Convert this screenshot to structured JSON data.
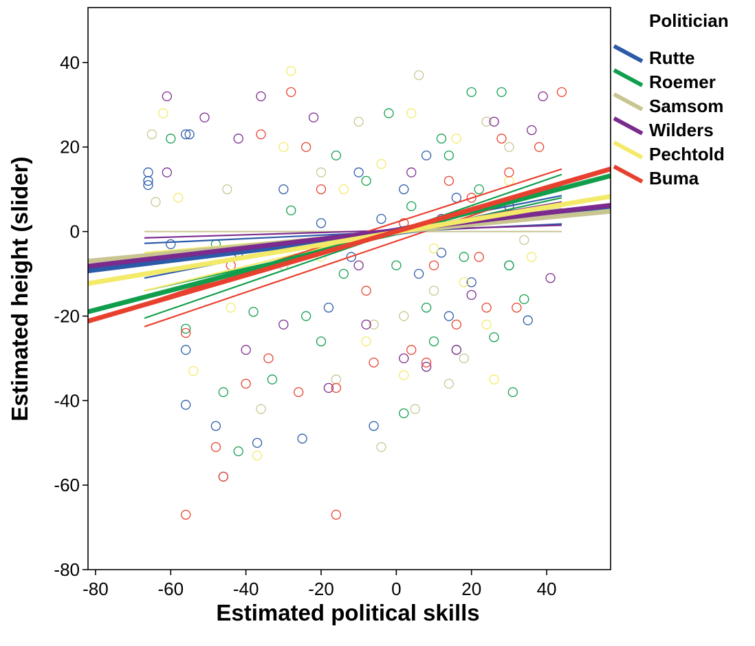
{
  "chart_data": {
    "type": "scatter",
    "title": "",
    "xlabel": "Estimated political skills",
    "ylabel": "Estimated height (slider)",
    "xlim": [
      -82,
      57
    ],
    "ylim": [
      -80,
      53
    ],
    "xticks": [
      -80,
      -60,
      -40,
      -20,
      0,
      20,
      40
    ],
    "yticks": [
      -80,
      -60,
      -40,
      -20,
      0,
      20,
      40
    ],
    "xtick_labels": [
      "-80",
      "-60",
      "-40",
      "-20",
      "0",
      "20",
      "40"
    ],
    "ytick_labels": [
      "-80",
      "-60",
      "-40",
      "-20",
      "0",
      "20",
      "40"
    ],
    "grid": false,
    "legend": {
      "title": "Politician",
      "placement": "outside-right",
      "items": [
        "Rutte",
        "Roemer",
        "Samsom",
        "Wilders",
        "Pechtold",
        "Buma"
      ]
    },
    "series": [
      {
        "name": "Rutte",
        "color": "#2a5aa8",
        "fit": {
          "x": [
            -82,
            57
          ],
          "y": [
            -9.3,
            6.0
          ]
        },
        "ci_upper": {
          "x": [
            -67,
            44
          ],
          "y": [
            -2.8,
            1.8
          ]
        },
        "ci_lower": {
          "x": [
            -67,
            44
          ],
          "y": [
            -11.0,
            8.5
          ]
        },
        "points": [
          [
            -66,
            14
          ],
          [
            -66,
            12
          ],
          [
            -66,
            11
          ],
          [
            -56,
            23
          ],
          [
            -55,
            23
          ],
          [
            -56,
            -28
          ],
          [
            -56,
            -41
          ],
          [
            -48,
            -46
          ],
          [
            -46,
            -58
          ],
          [
            -37,
            -50
          ],
          [
            -25,
            -49
          ],
          [
            -6,
            -46
          ],
          [
            -30,
            10
          ],
          [
            -20,
            2
          ],
          [
            -12,
            -6
          ],
          [
            -4,
            3
          ],
          [
            2,
            10
          ],
          [
            6,
            -10
          ],
          [
            12,
            -5
          ],
          [
            16,
            8
          ],
          [
            20,
            -12
          ],
          [
            24,
            3
          ],
          [
            30,
            -8
          ],
          [
            35,
            -21
          ],
          [
            8,
            18
          ],
          [
            14,
            -20
          ],
          [
            -10,
            14
          ],
          [
            -18,
            -18
          ],
          [
            -42,
            -5
          ],
          [
            -60,
            -3
          ]
        ]
      },
      {
        "name": "Roemer",
        "color": "#119e4c",
        "fit": {
          "x": [
            -82,
            57
          ],
          "y": [
            -19.0,
            13.2
          ]
        },
        "ci_upper": {
          "x": [
            -67,
            44
          ],
          "y": [
            -14.0,
            8.0
          ]
        },
        "ci_lower": {
          "x": [
            -67,
            44
          ],
          "y": [
            -20.5,
            13.5
          ]
        },
        "points": [
          [
            -60,
            22
          ],
          [
            -56,
            -23
          ],
          [
            -46,
            -38
          ],
          [
            -42,
            -52
          ],
          [
            -38,
            -19
          ],
          [
            -33,
            -35
          ],
          [
            -28,
            5
          ],
          [
            -20,
            -26
          ],
          [
            -14,
            -10
          ],
          [
            -8,
            12
          ],
          [
            0,
            -8
          ],
          [
            2,
            -43
          ],
          [
            4,
            6
          ],
          [
            10,
            -26
          ],
          [
            14,
            18
          ],
          [
            18,
            -6
          ],
          [
            20,
            33
          ],
          [
            26,
            -25
          ],
          [
            28,
            33
          ],
          [
            30,
            -8
          ],
          [
            31,
            -38
          ],
          [
            34,
            -16
          ],
          [
            -16,
            18
          ],
          [
            -2,
            28
          ],
          [
            8,
            -18
          ],
          [
            22,
            10
          ],
          [
            -48,
            -3
          ],
          [
            -24,
            -20
          ],
          [
            16,
            -28
          ],
          [
            12,
            22
          ]
        ]
      },
      {
        "name": "Samsom",
        "color": "#c9c592",
        "fit": {
          "x": [
            -82,
            57
          ],
          "y": [
            -7.0,
            4.8
          ]
        },
        "ci_upper": {
          "x": [
            -67,
            44
          ],
          "y": [
            0.0,
            0.0
          ]
        },
        "ci_lower": {
          "x": [
            -67,
            44
          ],
          "y": [
            -8.0,
            5.5
          ]
        },
        "points": [
          [
            -65,
            23
          ],
          [
            -64,
            7
          ],
          [
            -36,
            -42
          ],
          [
            -16,
            -35
          ],
          [
            -4,
            -51
          ],
          [
            5,
            -42
          ],
          [
            6,
            37
          ],
          [
            14,
            -36
          ],
          [
            24,
            26
          ],
          [
            30,
            20
          ],
          [
            -30,
            -8
          ],
          [
            -20,
            14
          ],
          [
            -6,
            -22
          ],
          [
            10,
            -14
          ],
          [
            20,
            5
          ],
          [
            34,
            -2
          ],
          [
            -45,
            10
          ],
          [
            -10,
            26
          ],
          [
            2,
            -20
          ],
          [
            18,
            -30
          ]
        ]
      },
      {
        "name": "Wilders",
        "color": "#7b2a8e",
        "fit": {
          "x": [
            -82,
            57
          ],
          "y": [
            -8.2,
            6.2
          ]
        },
        "ci_upper": {
          "x": [
            -67,
            44
          ],
          "y": [
            -1.5,
            1.5
          ]
        },
        "ci_lower": {
          "x": [
            -67,
            44
          ],
          "y": [
            -10.2,
            7.0
          ]
        },
        "points": [
          [
            -61,
            32
          ],
          [
            -61,
            14
          ],
          [
            -51,
            27
          ],
          [
            -36,
            32
          ],
          [
            -22,
            27
          ],
          [
            -30,
            -22
          ],
          [
            -18,
            -37
          ],
          [
            -8,
            -22
          ],
          [
            2,
            -30
          ],
          [
            8,
            -32
          ],
          [
            16,
            -28
          ],
          [
            26,
            26
          ],
          [
            36,
            24
          ],
          [
            39,
            32
          ],
          [
            41,
            -11
          ],
          [
            -42,
            22
          ],
          [
            -10,
            -8
          ],
          [
            4,
            14
          ],
          [
            12,
            3
          ],
          [
            20,
            -15
          ],
          [
            -40,
            -28
          ],
          [
            30,
            6
          ]
        ]
      },
      {
        "name": "Pechtold",
        "color": "#f3ea6a",
        "fit": {
          "x": [
            -82,
            57
          ],
          "y": [
            -12.3,
            8.3
          ]
        },
        "ci_upper": {
          "x": [
            -67,
            44
          ],
          "y": [
            -5.0,
            3.5
          ]
        },
        "ci_lower": {
          "x": [
            -67,
            44
          ],
          "y": [
            -14.0,
            9.8
          ]
        },
        "points": [
          [
            -62,
            28
          ],
          [
            -58,
            8
          ],
          [
            -54,
            -33
          ],
          [
            -44,
            -18
          ],
          [
            -37,
            -53
          ],
          [
            -28,
            38
          ],
          [
            -20,
            -6
          ],
          [
            -14,
            10
          ],
          [
            -8,
            -26
          ],
          [
            -4,
            16
          ],
          [
            2,
            -34
          ],
          [
            10,
            -4
          ],
          [
            16,
            22
          ],
          [
            24,
            -22
          ],
          [
            26,
            -35
          ],
          [
            30,
            12
          ],
          [
            36,
            -6
          ],
          [
            -30,
            20
          ],
          [
            4,
            28
          ],
          [
            18,
            -12
          ]
        ]
      },
      {
        "name": "Buma",
        "color": "#e8402f",
        "fit": {
          "x": [
            -82,
            57
          ],
          "y": [
            -21.2,
            14.8
          ]
        },
        "ci_upper": {
          "x": [
            -67,
            44
          ],
          "y": [
            -17.0,
            14.8
          ]
        },
        "ci_lower": {
          "x": [
            -67,
            44
          ],
          "y": [
            -22.5,
            11.0
          ]
        },
        "points": [
          [
            -56,
            -67
          ],
          [
            -56,
            -24
          ],
          [
            -48,
            -51
          ],
          [
            -46,
            -58
          ],
          [
            -40,
            -36
          ],
          [
            -36,
            23
          ],
          [
            -28,
            33
          ],
          [
            -26,
            -38
          ],
          [
            -24,
            20
          ],
          [
            -16,
            -67
          ],
          [
            -16,
            -37
          ],
          [
            -6,
            -31
          ],
          [
            4,
            -28
          ],
          [
            8,
            -31
          ],
          [
            14,
            12
          ],
          [
            20,
            8
          ],
          [
            24,
            -18
          ],
          [
            30,
            14
          ],
          [
            32,
            -18
          ],
          [
            38,
            20
          ],
          [
            44,
            33
          ],
          [
            -20,
            10
          ],
          [
            -8,
            -14
          ],
          [
            2,
            2
          ],
          [
            10,
            -8
          ],
          [
            16,
            -22
          ],
          [
            -44,
            -8
          ],
          [
            -34,
            -30
          ],
          [
            22,
            -6
          ],
          [
            28,
            22
          ]
        ]
      }
    ]
  }
}
